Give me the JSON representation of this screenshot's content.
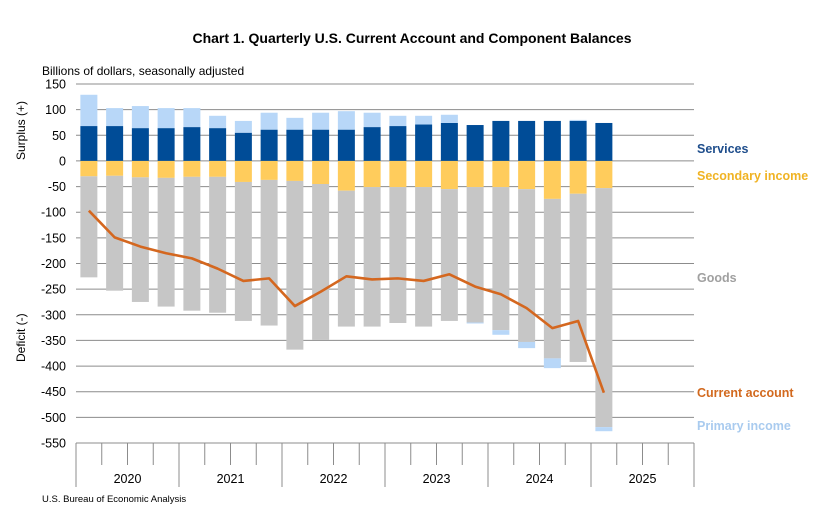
{
  "chart_data": {
    "type": "bar",
    "stacked": true,
    "title": "Chart 1. Quarterly U.S. Current Account and Component Balances",
    "subtitle": "Billions of dollars, seasonally adjusted",
    "ylabel_top": "Surplus (+)",
    "ylabel_bottom": "Deficit (-)",
    "source": "U.S. Bureau of Economic Analysis",
    "ylim": [
      -550,
      150
    ],
    "yticks": [
      150,
      100,
      50,
      0,
      -50,
      -100,
      -150,
      -200,
      -250,
      -300,
      -350,
      -400,
      -450,
      -500,
      -550
    ],
    "ytick_labels": [
      "150",
      "100",
      "50",
      "0",
      "-50",
      "-100",
      "-150",
      "-200",
      "-250",
      "-300",
      "-350",
      "-400",
      "-450",
      "-500",
      "-550"
    ],
    "grid": true,
    "legend_placement": "right",
    "years": [
      "2020",
      "2021",
      "2022",
      "2023",
      "2024",
      "2025"
    ],
    "categories": [
      "2020Q1",
      "2020Q2",
      "2020Q3",
      "2020Q4",
      "2021Q1",
      "2021Q2",
      "2021Q3",
      "2021Q4",
      "2022Q1",
      "2022Q2",
      "2022Q3",
      "2022Q4",
      "2023Q1",
      "2023Q2",
      "2023Q3",
      "2023Q4",
      "2024Q1",
      "2024Q2",
      "2024Q3",
      "2024Q4",
      "2025Q1"
    ],
    "series": [
      {
        "name": "Services",
        "kind": "bar",
        "color": "#004C97",
        "label_color": "#1F4E8C",
        "values": [
          68,
          68,
          64,
          64,
          66,
          64,
          55,
          61,
          61,
          61,
          61,
          66,
          68,
          71,
          74,
          70,
          78,
          78,
          78,
          78,
          74
        ]
      },
      {
        "name": "Secondary income",
        "kind": "bar",
        "color": "#FFCC5C",
        "label_color": "#F0B323",
        "values": [
          -30,
          -29,
          -32,
          -33,
          -31,
          -31,
          -41,
          -37,
          -39,
          -45,
          -58,
          -51,
          -51,
          -51,
          -55,
          -51,
          -51,
          -55,
          -74,
          -64,
          -53
        ]
      },
      {
        "name": "Goods",
        "kind": "bar",
        "color": "#C6C6C6",
        "label_color": "#A0A0A0",
        "values": [
          -197,
          -224,
          -243,
          -251,
          -261,
          -265,
          -271,
          -284,
          -329,
          -304,
          -265,
          -272,
          -265,
          -272,
          -257,
          -264,
          -279,
          -298,
          -311,
          -328,
          -466
        ]
      },
      {
        "name": "Current account",
        "kind": "line",
        "color": "#D4671F",
        "label_color": "#D2691E",
        "values": [
          -97,
          -149,
          -167,
          -180,
          -190,
          -210,
          -234,
          -229,
          -283,
          -255,
          -225,
          -231,
          -229,
          -234,
          -221,
          -245,
          -260,
          -287,
          -326,
          -312,
          -452
        ]
      },
      {
        "name": "Primary income",
        "kind": "bar",
        "color": "#B8D7F8",
        "label_color": "#A9CBEF",
        "values": [
          61,
          35,
          43,
          39,
          37,
          24,
          23,
          33,
          23,
          33,
          36,
          28,
          20,
          17,
          16,
          -2,
          -9,
          -12,
          -19,
          2,
          -8
        ]
      }
    ]
  }
}
